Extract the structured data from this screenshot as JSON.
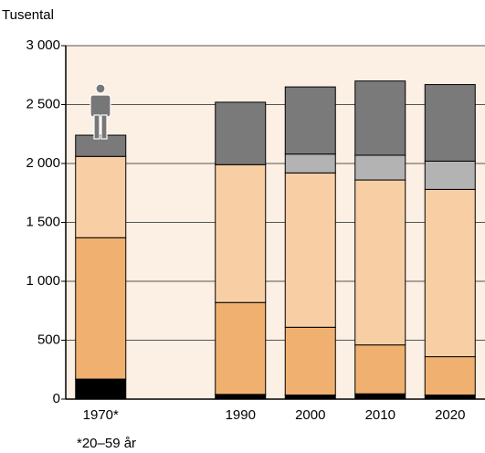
{
  "chart_data": {
    "type": "stacked_bar",
    "y_label": "Tusental",
    "footnote": "*20–59 år",
    "categories": [
      "1970*",
      null,
      "1990",
      "2000",
      "2010",
      "2020"
    ],
    "series": [
      {
        "color": "#000000",
        "values": [
          170,
          null,
          40,
          35,
          45,
          35
        ]
      },
      {
        "color": "#f0b170",
        "values": [
          1200,
          null,
          780,
          575,
          415,
          325
        ]
      },
      {
        "color": "#f8cfa5",
        "values": [
          690,
          null,
          1170,
          1310,
          1400,
          1420
        ]
      },
      {
        "color": "#b3b3b3",
        "values": [
          null,
          null,
          null,
          160,
          210,
          240
        ]
      },
      {
        "color": "#7a7a7a",
        "values": [
          180,
          null,
          530,
          570,
          630,
          650
        ]
      }
    ],
    "ylim": [
      0,
      3000
    ],
    "yticks": [
      0,
      500,
      {
        "value": 1000,
        "label": "1 000"
      },
      {
        "value": 1500,
        "label": "1 500"
      },
      {
        "value": 2000,
        "label": "2 000"
      },
      {
        "value": 2500,
        "label": "2 500"
      },
      {
        "value": 3000,
        "label": "3 000"
      }
    ],
    "grid": true
  }
}
